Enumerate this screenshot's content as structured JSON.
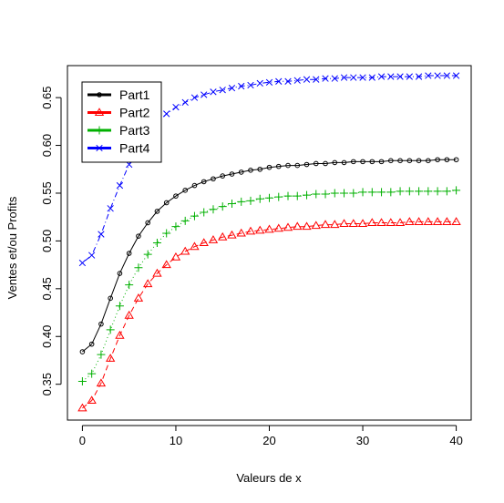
{
  "chart_data": {
    "type": "line",
    "title": "",
    "xlabel": "Valeurs de x",
    "ylabel": "Ventes et/ou Profits",
    "xlim": [
      -1.6,
      41.6
    ],
    "ylim": [
      0.3125,
      0.6835
    ],
    "xticks": [
      0,
      10,
      20,
      30,
      40
    ],
    "yticks": [
      0.35,
      0.4,
      0.45,
      0.5,
      0.55,
      0.6,
      0.65
    ],
    "ytick_labels": [
      "0.35",
      "0.40",
      "0.45",
      "0.50",
      "0.55",
      "0.60",
      "0.65"
    ],
    "grid": false,
    "legend": "top-left",
    "x": [
      0,
      1,
      2,
      3,
      4,
      5,
      6,
      7,
      8,
      9,
      10,
      11,
      12,
      13,
      14,
      15,
      16,
      17,
      18,
      19,
      20,
      21,
      22,
      23,
      24,
      25,
      26,
      27,
      28,
      29,
      30,
      31,
      32,
      33,
      34,
      35,
      36,
      37,
      38,
      39,
      40
    ],
    "series": [
      {
        "name": "Part1",
        "color": "#000000",
        "line": "solid",
        "marker": "circle",
        "values": [
          0.384,
          0.392,
          0.413,
          0.44,
          0.466,
          0.487,
          0.505,
          0.519,
          0.531,
          0.54,
          0.547,
          0.553,
          0.558,
          0.562,
          0.565,
          0.568,
          0.57,
          0.572,
          0.574,
          0.575,
          0.577,
          0.578,
          0.579,
          0.579,
          0.58,
          0.581,
          0.581,
          0.582,
          0.582,
          0.583,
          0.583,
          0.583,
          0.583,
          0.584,
          0.584,
          0.584,
          0.584,
          0.584,
          0.585,
          0.585,
          0.585
        ]
      },
      {
        "name": "Part2",
        "color": "#ff0000",
        "line": "dashed",
        "marker": "triangle",
        "values": [
          0.325,
          0.333,
          0.351,
          0.377,
          0.401,
          0.422,
          0.44,
          0.455,
          0.466,
          0.475,
          0.483,
          0.489,
          0.494,
          0.498,
          0.501,
          0.504,
          0.506,
          0.508,
          0.51,
          0.511,
          0.512,
          0.513,
          0.514,
          0.515,
          0.515,
          0.516,
          0.517,
          0.517,
          0.518,
          0.518,
          0.518,
          0.519,
          0.519,
          0.519,
          0.519,
          0.52,
          0.52,
          0.52,
          0.52,
          0.52,
          0.52
        ]
      },
      {
        "name": "Part3",
        "color": "#00b000",
        "line": "dotted",
        "marker": "plus",
        "values": [
          0.353,
          0.361,
          0.381,
          0.407,
          0.432,
          0.454,
          0.472,
          0.486,
          0.498,
          0.508,
          0.515,
          0.521,
          0.526,
          0.53,
          0.533,
          0.536,
          0.539,
          0.541,
          0.542,
          0.544,
          0.545,
          0.546,
          0.547,
          0.547,
          0.548,
          0.549,
          0.549,
          0.55,
          0.55,
          0.55,
          0.551,
          0.551,
          0.551,
          0.551,
          0.552,
          0.552,
          0.552,
          0.552,
          0.552,
          0.552,
          0.553
        ]
      },
      {
        "name": "Part4",
        "color": "#0000ff",
        "line": "dashdot",
        "marker": "cross",
        "values": [
          0.477,
          0.485,
          0.507,
          0.534,
          0.558,
          0.58,
          0.598,
          0.613,
          0.624,
          0.633,
          0.64,
          0.645,
          0.65,
          0.653,
          0.656,
          0.658,
          0.66,
          0.662,
          0.663,
          0.665,
          0.666,
          0.667,
          0.667,
          0.668,
          0.669,
          0.669,
          0.67,
          0.67,
          0.671,
          0.671,
          0.671,
          0.671,
          0.672,
          0.672,
          0.672,
          0.672,
          0.672,
          0.673,
          0.673,
          0.673,
          0.673
        ]
      }
    ]
  }
}
